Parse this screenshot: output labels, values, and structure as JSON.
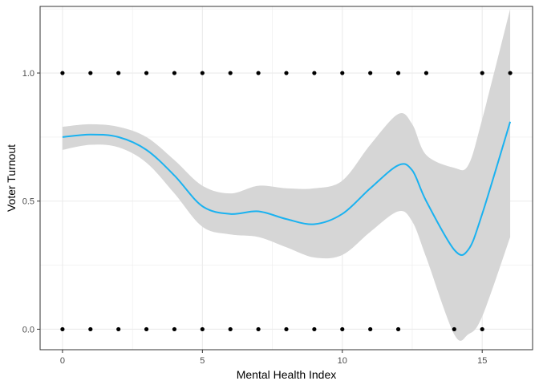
{
  "chart_data": {
    "type": "scatter",
    "title": "",
    "xlabel": "Mental Health Index",
    "ylabel": "Voter Turnout",
    "xlim": [
      -0.8,
      16.8
    ],
    "ylim": [
      -0.08,
      1.26
    ],
    "x_ticks": [
      0,
      5,
      10,
      15
    ],
    "x_tick_labels": [
      "0",
      "5",
      "10",
      "15"
    ],
    "y_ticks": [
      0.0,
      0.5,
      1.0
    ],
    "y_tick_labels": [
      "0.0",
      "0.5",
      "1.0"
    ],
    "grid": true,
    "legend": "none",
    "series": [
      {
        "kind": "points",
        "color": "#000000",
        "x": [
          0,
          1,
          2,
          3,
          4,
          5,
          6,
          7,
          8,
          9,
          10,
          11,
          12,
          13,
          15,
          16,
          0,
          1,
          2,
          3,
          4,
          5,
          6,
          7,
          8,
          9,
          10,
          11,
          12,
          14,
          15
        ],
        "y": [
          1,
          1,
          1,
          1,
          1,
          1,
          1,
          1,
          1,
          1,
          1,
          1,
          1,
          1,
          1,
          1,
          0,
          0,
          0,
          0,
          0,
          0,
          0,
          0,
          0,
          0,
          0,
          0,
          0,
          0,
          0
        ]
      },
      {
        "kind": "smooth",
        "color": "#1ab2f0",
        "band_color": "#d6d6d6",
        "x": [
          0,
          1,
          2,
          3,
          4,
          5,
          6,
          7,
          8,
          9,
          10,
          11,
          12,
          12.5,
          13,
          14,
          14.5,
          15,
          16
        ],
        "y": [
          0.75,
          0.76,
          0.75,
          0.7,
          0.6,
          0.48,
          0.45,
          0.46,
          0.43,
          0.41,
          0.45,
          0.55,
          0.64,
          0.62,
          0.5,
          0.31,
          0.31,
          0.45,
          0.81
        ],
        "lower": [
          0.7,
          0.72,
          0.71,
          0.65,
          0.53,
          0.4,
          0.37,
          0.36,
          0.32,
          0.28,
          0.29,
          0.38,
          0.46,
          0.42,
          0.28,
          -0.02,
          -0.02,
          0.05,
          0.36
        ],
        "upper": [
          0.79,
          0.8,
          0.79,
          0.75,
          0.66,
          0.56,
          0.53,
          0.56,
          0.55,
          0.55,
          0.58,
          0.72,
          0.84,
          0.8,
          0.68,
          0.63,
          0.64,
          0.82,
          1.25
        ]
      }
    ]
  },
  "style": {
    "panel_border": "#333333",
    "grid_color": "#ebebeb",
    "background": "#ffffff"
  }
}
